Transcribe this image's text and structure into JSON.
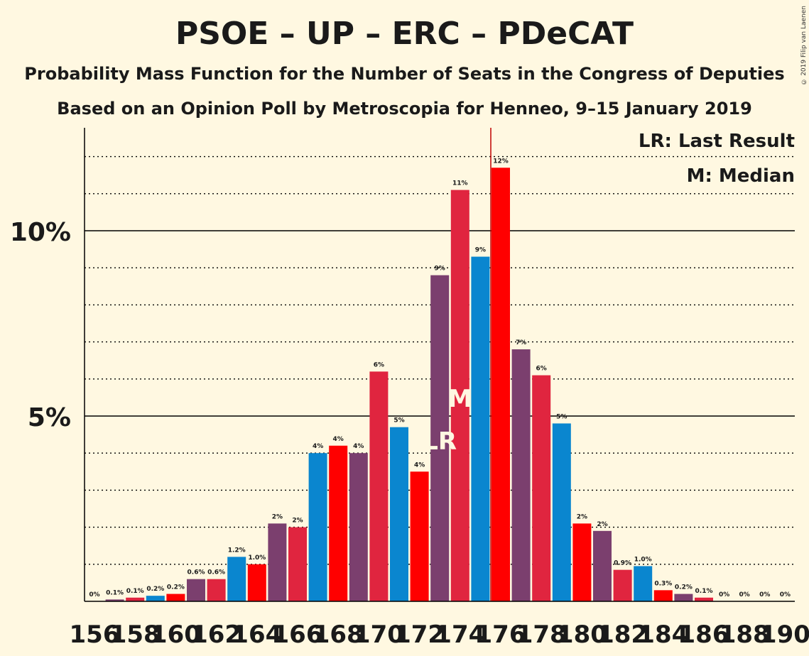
{
  "title": "PSOE – UP – ERC – PDeCAT",
  "subtitle1": "Probability Mass Function for the Number of Seats in the Congress of Deputies",
  "subtitle2": "Based on an Opinion Poll by Metroscopia for Henneo, 9–15 January 2019",
  "copyright": "© 2019 Filip van Laenen",
  "legend": {
    "lr": "LR: Last Result",
    "m": "M: Median"
  },
  "markers": {
    "lr_label": "LR",
    "m_label": "M"
  },
  "chart_data": {
    "type": "bar",
    "x": [
      156,
      157,
      158,
      159,
      160,
      161,
      162,
      163,
      164,
      165,
      166,
      167,
      168,
      169,
      170,
      171,
      172,
      173,
      174,
      175,
      176,
      177,
      178,
      179,
      180,
      181,
      182,
      183,
      184,
      185,
      186,
      187,
      188,
      189,
      190
    ],
    "values": [
      0.0,
      0.05,
      0.1,
      0.15,
      0.2,
      0.6,
      0.6,
      1.2,
      1.0,
      2.1,
      2.0,
      4.0,
      4.2,
      4.0,
      6.2,
      4.7,
      3.5,
      8.8,
      11.1,
      9.3,
      11.7,
      6.8,
      6.1,
      4.8,
      2.1,
      1.9,
      0.85,
      0.95,
      0.3,
      0.2,
      0.1,
      0.0,
      0.0,
      0.0,
      0.0
    ],
    "labels": [
      "0%",
      "0.1%",
      "0.1%",
      "0.2%",
      "0.2%",
      "0.6%",
      "0.6%",
      "1.2%",
      "1.0%",
      "2%",
      "2%",
      "4%",
      "4%",
      "4%",
      "6%",
      "5%",
      "4%",
      "9%",
      "11%",
      "9%",
      "12%",
      "7%",
      "6%",
      "5%",
      "2%",
      "2%",
      "0.9%",
      "1.0%",
      "0.3%",
      "0.2%",
      "0.1%",
      "0%",
      "0%",
      "0%",
      "0%"
    ],
    "xticks": [
      "156",
      "158",
      "160",
      "162",
      "164",
      "166",
      "168",
      "170",
      "172",
      "174",
      "176",
      "178",
      "180",
      "182",
      "184",
      "186",
      "188",
      "190"
    ],
    "yticks": [
      "5%",
      "10%"
    ],
    "ylim": [
      0,
      12.5
    ],
    "last_result_x": 173,
    "median_x": 174,
    "majority_x": 176,
    "colors": [
      "#7B3F6E",
      "#E0253F",
      "#0A86CF",
      "#FF0000"
    ]
  }
}
